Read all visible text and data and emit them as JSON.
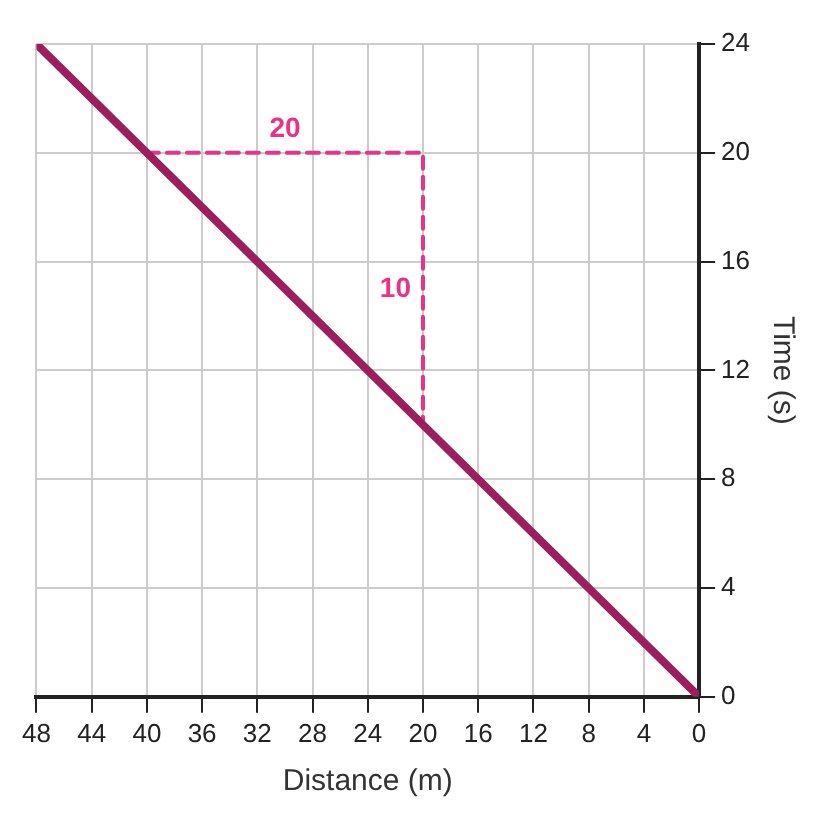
{
  "chart_data": {
    "type": "line",
    "xlabel": "Distance (m)",
    "ylabel": "Time (s)",
    "xlim": [
      48,
      0
    ],
    "xticks": [
      48,
      44,
      40,
      36,
      32,
      28,
      24,
      20,
      16,
      12,
      8,
      4,
      0
    ],
    "ylim": [
      0,
      24
    ],
    "yticks": [
      0,
      4,
      8,
      12,
      16,
      20,
      24
    ],
    "grid": true,
    "legend": false,
    "marker": "none",
    "series": [
      {
        "color": "#9b1f5f",
        "x": [
          0,
          48
        ],
        "values": [
          0,
          24
        ],
        "line_style": "solid"
      },
      {
        "color": "#e8338a",
        "x": [
          40,
          20,
          20
        ],
        "values": [
          20,
          20,
          10
        ],
        "line_style": "dashed"
      }
    ],
    "annotations": [
      {
        "text": "20",
        "x": 30,
        "y": 20
      },
      {
        "text": "10",
        "x": 20,
        "y": 15
      }
    ]
  }
}
